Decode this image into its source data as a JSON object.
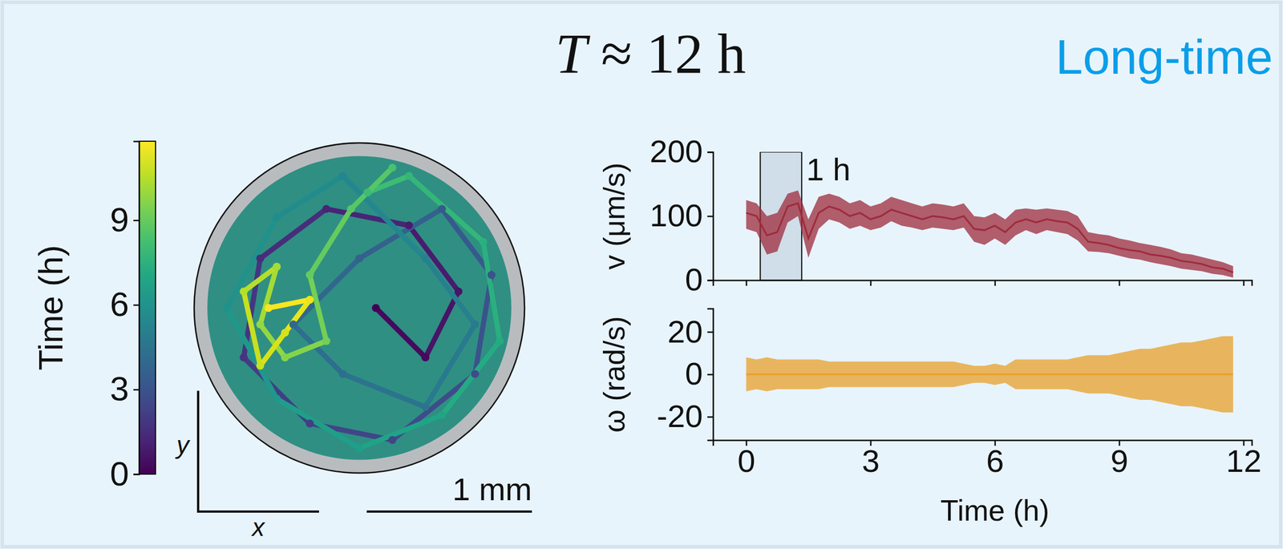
{
  "chart_data": [
    {
      "type": "trajectory",
      "title": "T ≈ 12 h",
      "subtitle": "Long-time",
      "x_label": "x",
      "y_label": "y",
      "arena_radius": 1.0,
      "scale_bar": {
        "value": 1,
        "label": "1 mm"
      },
      "x": [
        0.1,
        0.4,
        0.6,
        0.3,
        -0.2,
        -0.6,
        -0.7,
        -0.3,
        0.2,
        0.7,
        0.8,
        0.5,
        0.0,
        -0.4,
        -0.1,
        0.4,
        0.7,
        0.4,
        -0.1,
        -0.5,
        -0.8,
        -0.5,
        0.0,
        0.5,
        0.85,
        0.75,
        0.3,
        0.05,
        0.2,
        -0.05,
        -0.3,
        -0.2,
        -0.45,
        -0.6,
        -0.5,
        -0.7,
        -0.6,
        -0.45,
        -0.3,
        -0.55
      ],
      "y": [
        0.0,
        -0.3,
        0.1,
        0.5,
        0.6,
        0.3,
        -0.3,
        -0.7,
        -0.8,
        -0.4,
        0.2,
        0.6,
        0.3,
        -0.1,
        -0.4,
        -0.6,
        -0.1,
        0.3,
        0.8,
        0.55,
        0.0,
        -0.55,
        -0.85,
        -0.65,
        -0.2,
        0.4,
        0.8,
        0.7,
        0.85,
        0.6,
        0.2,
        -0.2,
        -0.3,
        -0.1,
        0.25,
        0.1,
        -0.35,
        -0.15,
        0.05,
        0.0
      ],
      "time": [
        0,
        0.3,
        0.6,
        0.9,
        1.2,
        1.5,
        1.8,
        2.1,
        2.4,
        2.7,
        3.0,
        3.3,
        3.6,
        3.9,
        4.2,
        4.5,
        4.8,
        5.1,
        5.4,
        5.7,
        6.0,
        6.3,
        6.6,
        6.9,
        7.2,
        7.5,
        7.8,
        8.1,
        8.4,
        8.7,
        9.0,
        9.3,
        9.6,
        9.9,
        10.2,
        10.5,
        10.8,
        11.1,
        11.4,
        11.7
      ],
      "colorbar": {
        "label": "Time (h)",
        "range": [
          0,
          11.8
        ],
        "ticks": [
          0,
          3,
          6,
          9
        ]
      }
    },
    {
      "type": "band",
      "ylabel": "v (μm/s)",
      "xlim": [
        -0.8,
        12.2
      ],
      "xticks": [
        0,
        3,
        6,
        9,
        12
      ],
      "ylim": [
        0,
        200
      ],
      "yticks": [
        0,
        100,
        200
      ],
      "tick_labels": "y",
      "x": [
        0,
        0.25,
        0.5,
        0.75,
        1,
        1.25,
        1.5,
        1.75,
        2,
        2.25,
        2.5,
        2.75,
        3,
        3.25,
        3.5,
        3.75,
        4,
        4.25,
        4.5,
        4.75,
        5,
        5.25,
        5.5,
        5.75,
        6,
        6.25,
        6.5,
        6.75,
        7,
        7.25,
        7.5,
        7.75,
        8,
        8.25,
        8.5,
        8.75,
        9,
        9.25,
        9.5,
        9.75,
        10,
        10.25,
        10.5,
        10.75,
        11,
        11.25,
        11.5,
        11.75
      ],
      "series": [
        {
          "color": "#9e2b3c",
          "values": [
            105,
            100,
            70,
            75,
            115,
            120,
            65,
            105,
            115,
            110,
            100,
            105,
            95,
            100,
            110,
            105,
            100,
            95,
            100,
            98,
            95,
            100,
            80,
            78,
            85,
            75,
            90,
            95,
            90,
            95,
            92,
            90,
            80,
            60,
            58,
            55,
            50,
            47,
            45,
            40,
            38,
            35,
            30,
            28,
            25,
            20,
            18,
            12
          ],
          "upper": [
            125,
            120,
            100,
            105,
            135,
            140,
            95,
            130,
            135,
            130,
            120,
            125,
            115,
            120,
            130,
            125,
            120,
            115,
            120,
            118,
            115,
            120,
            100,
            98,
            105,
            95,
            110,
            112,
            110,
            112,
            110,
            108,
            100,
            75,
            72,
            70,
            65,
            62,
            58,
            55,
            52,
            48,
            42,
            40,
            36,
            32,
            28,
            22
          ],
          "lower": [
            80,
            75,
            40,
            45,
            90,
            100,
            35,
            80,
            95,
            90,
            80,
            85,
            78,
            82,
            92,
            85,
            82,
            78,
            82,
            80,
            78,
            82,
            60,
            55,
            65,
            55,
            70,
            78,
            72,
            78,
            75,
            72,
            62,
            45,
            44,
            42,
            38,
            34,
            32,
            28,
            25,
            22,
            18,
            16,
            14,
            10,
            8,
            4
          ]
        }
      ],
      "annotations": [
        {
          "text": "1 h",
          "x_range": [
            0.34,
            1.34
          ]
        }
      ]
    },
    {
      "type": "band",
      "ylabel": "ω (rad/s)",
      "xlabel": "Time (h)",
      "xlim": [
        -0.8,
        12.2
      ],
      "xticks": [
        0,
        3,
        6,
        9,
        12
      ],
      "ylim": [
        -31,
        31
      ],
      "yticks": [
        -20,
        0,
        20
      ],
      "x": [
        0,
        0.25,
        0.5,
        0.75,
        1,
        1.25,
        1.5,
        1.75,
        2,
        2.25,
        2.5,
        2.75,
        3,
        3.25,
        3.5,
        3.75,
        4,
        4.25,
        4.5,
        4.75,
        5,
        5.25,
        5.5,
        5.75,
        6,
        6.25,
        6.5,
        6.75,
        7,
        7.25,
        7.5,
        7.75,
        8,
        8.25,
        8.5,
        8.75,
        9,
        9.25,
        9.5,
        9.75,
        10,
        10.25,
        10.5,
        10.75,
        11,
        11.25,
        11.5,
        11.75
      ],
      "series": [
        {
          "color": "#e8a02a",
          "values": [
            0,
            0,
            0,
            0,
            0,
            0,
            0,
            0,
            0,
            0,
            0,
            0,
            0,
            0,
            0,
            0,
            0,
            0,
            0,
            0,
            0,
            0,
            0,
            0,
            0,
            0,
            0,
            0,
            0,
            0,
            0,
            0,
            0,
            0,
            0,
            0,
            0,
            0,
            0,
            0,
            0,
            0,
            0,
            0,
            0,
            0,
            0,
            0
          ],
          "upper": [
            8,
            7,
            8,
            7,
            7,
            7,
            7,
            7,
            6,
            6,
            6,
            6,
            6,
            6,
            6,
            6,
            6,
            6,
            6,
            6,
            6,
            5,
            4,
            4,
            5,
            4,
            7,
            7,
            7,
            7,
            7,
            7,
            8,
            9,
            9,
            9,
            10,
            11,
            12,
            12,
            13,
            14,
            15,
            15,
            16,
            17,
            18,
            18
          ],
          "lower": [
            -8,
            -7,
            -8,
            -7,
            -7,
            -7,
            -7,
            -7,
            -6,
            -6,
            -6,
            -6,
            -6,
            -6,
            -6,
            -6,
            -6,
            -6,
            -6,
            -6,
            -6,
            -5,
            -4,
            -4,
            -5,
            -4,
            -7,
            -7,
            -7,
            -7,
            -7,
            -7,
            -8,
            -9,
            -9,
            -9,
            -10,
            -11,
            -12,
            -12,
            -13,
            -14,
            -15,
            -15,
            -16,
            -17,
            -18,
            -18
          ]
        }
      ]
    }
  ]
}
